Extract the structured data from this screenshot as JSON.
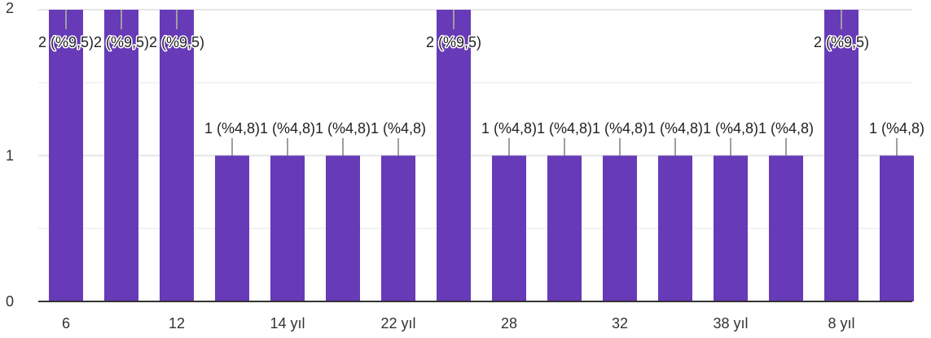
{
  "chart_data": {
    "type": "bar",
    "title": "",
    "xlabel": "",
    "ylabel": "",
    "ylim": [
      0,
      2
    ],
    "grid": true,
    "legend": "none",
    "y_ticks": [
      "0",
      "1",
      "2"
    ],
    "x_tick_labels": [
      {
        "index": 0,
        "text": "6"
      },
      {
        "index": 2,
        "text": "12"
      },
      {
        "index": 4,
        "text": "14 yıl"
      },
      {
        "index": 6,
        "text": "22 yıl"
      },
      {
        "index": 8,
        "text": "28"
      },
      {
        "index": 10,
        "text": "32"
      },
      {
        "index": 12,
        "text": "38 yıl"
      },
      {
        "index": 14,
        "text": "8 yıl"
      }
    ],
    "bar_color": "#673ab7",
    "values": [
      2,
      2,
      2,
      1,
      1,
      1,
      1,
      2,
      1,
      1,
      1,
      1,
      1,
      1,
      2,
      1
    ],
    "data_labels": [
      "2 (%9,5)",
      "2 (%9,5)",
      "2 (%9,5)",
      "1 (%4,8)",
      "1 (%4,8)",
      "1 (%4,8)",
      "1 (%4,8)",
      "2 (%9,5)",
      "1 (%4,8)",
      "1 (%4,8)",
      "1 (%4,8)",
      "1 (%4,8)",
      "1 (%4,8)",
      "1 (%4,8)",
      "2 (%9,5)",
      "1 (%4,8)"
    ]
  }
}
